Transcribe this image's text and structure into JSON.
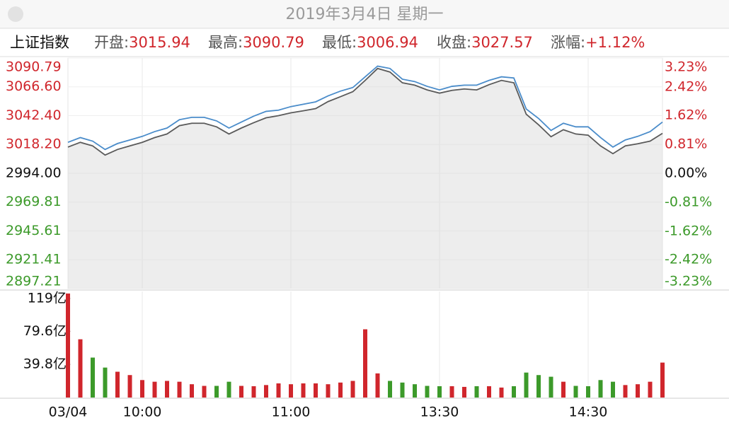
{
  "header": {
    "date": "2019年3月4日 星期一"
  },
  "quote": {
    "name": "上证指数",
    "items": [
      {
        "label": "开盘:",
        "value": 3015.94
      },
      {
        "label": "最高:",
        "value": 3090.79
      },
      {
        "label": "最低:",
        "value": 3006.94
      },
      {
        "label": "收盘:",
        "value": 3027.57
      },
      {
        "label": "涨幅:",
        "value": "+1.12%"
      }
    ]
  },
  "chart_data": [
    {
      "type": "line",
      "categories": [
        "03/04",
        null,
        null,
        null,
        null,
        null,
        "10:00",
        null,
        null,
        null,
        null,
        null,
        null,
        null,
        null,
        null,
        null,
        null,
        "11:00",
        null,
        null,
        null,
        null,
        null,
        null,
        null,
        null,
        null,
        null,
        null,
        "13:30",
        null,
        null,
        null,
        null,
        null,
        null,
        null,
        null,
        null,
        null,
        null,
        "14:30",
        null,
        null,
        null,
        null,
        null,
        null
      ],
      "ylim": [
        2897.21,
        3090.79
      ],
      "yticks": [
        3090.79,
        {
          "value": 3066.6,
          "label": "3066.60"
        },
        {
          "value": 3042.4,
          "label": "3042.40"
        },
        {
          "value": 3018.2,
          "label": "3018.20"
        },
        {
          "value": 2994,
          "label": "2994.00"
        },
        2969.81,
        2945.61,
        2921.41,
        2897.21
      ],
      "y2lim": [
        -3.23,
        3.23
      ],
      "y2ticks": [
        {
          "value": 3.23,
          "label": "3.23%"
        },
        {
          "value": 2.42,
          "label": "2.42%"
        },
        {
          "value": 1.62,
          "label": "1.62%"
        },
        {
          "value": 0.81,
          "label": "0.81%"
        },
        {
          "value": 0,
          "label": "0.00%"
        },
        {
          "value": -0.81,
          "label": "-0.81%"
        },
        {
          "value": -1.62,
          "label": "-1.62%"
        },
        {
          "value": -2.42,
          "label": "-2.42%"
        },
        {
          "value": -3.23,
          "label": "-3.23%"
        }
      ],
      "grid": true,
      "area_color": "#d6d6d6",
      "up_color": "#d0262c",
      "down_color": "#3c9a2a",
      "flat_color": "#111111",
      "series": [
        {
          "color": "#5a5a5a",
          "values": [
            3016,
            3020,
            3017,
            3009.3,
            3014,
            3017,
            3020,
            3024,
            3027,
            3034,
            3036,
            3036,
            3033,
            3027,
            3032,
            3036.5,
            3040.6,
            3042.4,
            3044.8,
            3046.5,
            3048.3,
            3054.2,
            3058.3,
            3062.5,
            3072,
            3082,
            3079,
            3070,
            3068,
            3064,
            3061.3,
            3063.6,
            3064.8,
            3064,
            3068.4,
            3072,
            3070,
            3043.6,
            3034.7,
            3024.7,
            3030.6,
            3027,
            3026,
            3017,
            3010.5,
            3017,
            3018.8,
            3021,
            3027.57
          ]
        },
        {
          "color": "#4a8cca",
          "values": [
            3020,
            3024,
            3021,
            3014,
            3019,
            3022,
            3025,
            3029,
            3032,
            3039,
            3041,
            3041,
            3038,
            3032,
            3037,
            3042,
            3046,
            3047,
            3050,
            3052,
            3054,
            3059,
            3063,
            3066,
            3075,
            3084,
            3082,
            3073,
            3071,
            3067,
            3064,
            3067,
            3068,
            3068,
            3072,
            3075,
            3074,
            3048,
            3040,
            3030,
            3036,
            3033,
            3033,
            3024,
            3016,
            3022,
            3025,
            3029,
            3037
          ]
        }
      ]
    },
    {
      "type": "bar",
      "ylim": [
        0,
        127.5
      ],
      "yticks": [
        {
          "value": 119,
          "label": "119亿"
        },
        {
          "value": 79.6,
          "label": "79.6亿"
        },
        {
          "value": 39.8,
          "label": "39.8亿"
        }
      ],
      "up_color": "#d0262c",
      "down_color": "#3c9a2a",
      "values": [
        125,
        70,
        48,
        36,
        31,
        27,
        21,
        19,
        20,
        19,
        16,
        14,
        14,
        19,
        14,
        13.6,
        15,
        17,
        16,
        17,
        17,
        16,
        18,
        20,
        82,
        29,
        20,
        18,
        16,
        14,
        13.6,
        13.6,
        12.8,
        13.6,
        13.6,
        12,
        13.6,
        30,
        27,
        25,
        19,
        14,
        13.6,
        21,
        19,
        15,
        16,
        19,
        42
      ]
    }
  ]
}
